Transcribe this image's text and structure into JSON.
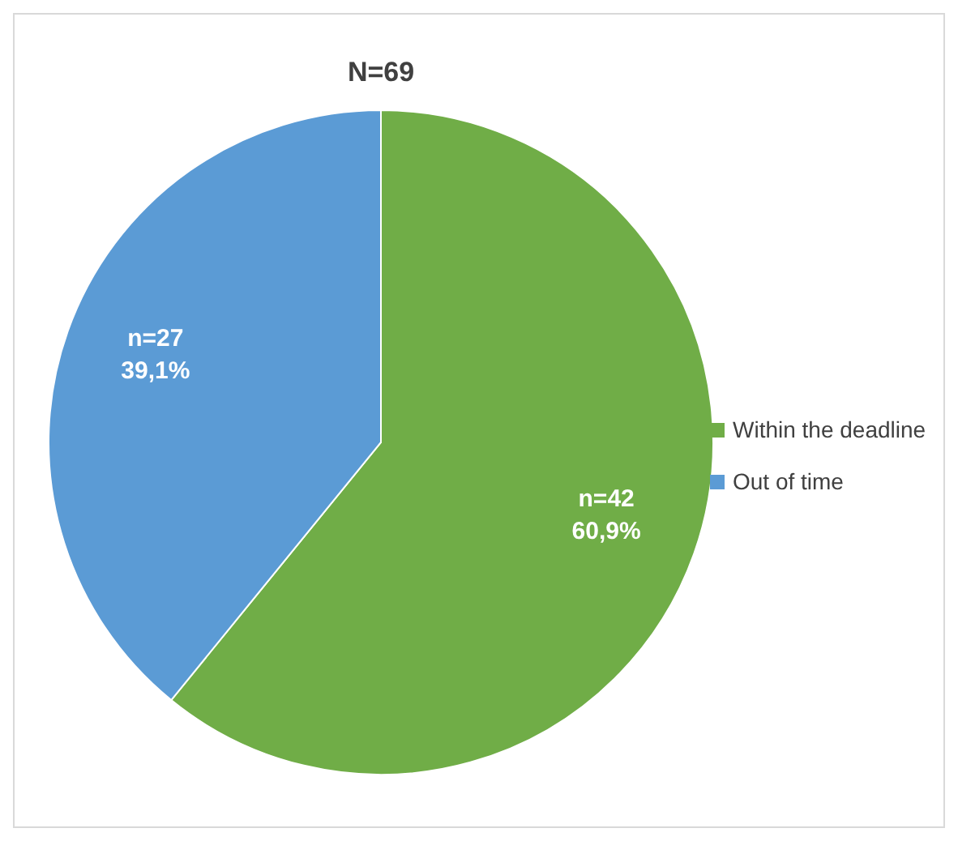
{
  "chart_data": {
    "type": "pie",
    "title": "N=69",
    "categories": [
      "Within the deadline",
      "Out of time"
    ],
    "values": [
      42,
      27
    ],
    "colors": [
      "#70ad47",
      "#5b9bd5"
    ],
    "value_labels": [
      "n=42\n60,9%",
      "n=27\n39,1%"
    ],
    "legend": "right"
  }
}
